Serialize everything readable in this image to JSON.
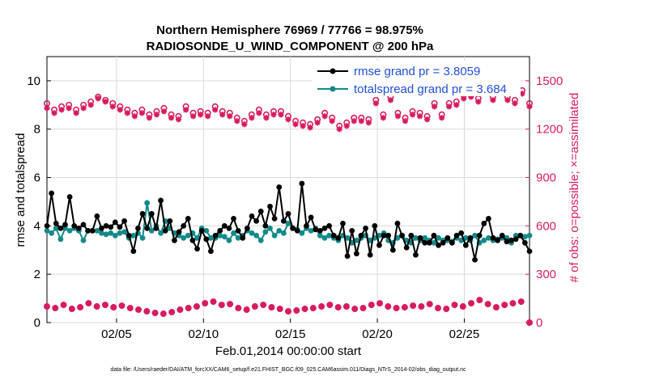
{
  "chart_data": {
    "type": "line",
    "title_line1": "Northern Hemisphere 76969 / 77766 = 98.975%",
    "title_line2": "RADIOSONDE_U_WIND_COMPONENT @ 200 hPa",
    "xlabel": "Feb.01,2014 00:00:00 start",
    "ylabel_left": "rmse and totalspread",
    "ylabel_right": "# of obs: o=possible; ×=assimilated",
    "footer": "data file: /Users/raeder/DAI/ATM_forcXX/CAM6_setup/f.e21.FHIST_BGC.f09_025.CAM6assim.011/Diags_NTrS_2014-02/obs_diag_output.nc",
    "x_tick_labels": [
      "02/05",
      "02/10",
      "02/15",
      "02/20",
      "02/25"
    ],
    "x_tick_values": [
      5,
      10,
      15,
      20,
      25
    ],
    "xlim": [
      1,
      28.75
    ],
    "left_ylim": [
      0,
      11
    ],
    "left_yticks": [
      "0",
      "2",
      "4",
      "6",
      "8",
      "10"
    ],
    "right_ylim": [
      0,
      1650
    ],
    "right_yticks": [
      "0",
      "300",
      "600",
      "900",
      "1200",
      "1500"
    ],
    "colors": {
      "rmse": "#000000",
      "spread": "#138a8a",
      "obs": "#d81b60",
      "legend_text": "#1f4fd6"
    },
    "legend": [
      {
        "label": "rmse grand pr = 3.8059",
        "series": "rmse"
      },
      {
        "label": "totalspread grand pr = 3.684",
        "series": "spread"
      }
    ],
    "series": [
      {
        "name": "rmse",
        "axis": "left",
        "values": [
          4.0,
          5.35,
          4.1,
          3.9,
          4.05,
          5.2,
          4.0,
          3.9,
          4.05,
          3.8,
          3.8,
          4.4,
          3.9,
          4.0,
          3.95,
          4.15,
          3.95,
          4.2,
          3.6,
          2.95,
          3.9,
          4.5,
          3.9,
          4.5,
          3.9,
          5.05,
          3.8,
          4.2,
          3.4,
          3.75,
          4.0,
          4.3,
          3.4,
          3.05,
          3.8,
          3.45,
          2.95,
          3.6,
          3.8,
          4.0,
          3.9,
          4.3,
          3.8,
          3.5,
          3.9,
          4.4,
          4.2,
          4.6,
          4.0,
          4.8,
          4.3,
          5.6,
          4.2,
          4.5,
          3.9,
          3.8,
          5.75,
          4.0,
          4.35,
          3.85,
          3.8,
          3.9,
          4.0,
          3.6,
          3.5,
          4.1,
          2.75,
          3.8,
          2.85,
          3.6,
          3.9,
          2.8,
          4.0,
          3.2,
          3.6,
          3.6,
          3.0,
          4.1,
          3.6,
          3.1,
          3.6,
          2.8,
          3.5,
          3.3,
          3.3,
          3.6,
          3.2,
          3.3,
          3.5,
          3.3,
          3.6,
          3.7,
          3.2,
          3.5,
          2.6,
          3.6,
          4.1,
          4.3,
          3.5,
          3.4,
          3.6,
          3.35,
          3.4,
          3.45,
          3.6,
          3.3,
          2.95
        ]
      },
      {
        "name": "totalspread",
        "axis": "left",
        "values": [
          3.8,
          3.7,
          3.9,
          3.45,
          3.9,
          3.8,
          3.9,
          3.8,
          3.4,
          3.8,
          3.8,
          3.8,
          3.7,
          3.65,
          3.7,
          3.6,
          3.7,
          3.75,
          3.5,
          3.6,
          3.7,
          3.5,
          4.95,
          3.8,
          4.0,
          3.7,
          4.2,
          3.9,
          3.7,
          3.6,
          3.5,
          3.6,
          3.7,
          3.5,
          3.9,
          3.8,
          3.5,
          3.5,
          3.6,
          3.55,
          3.4,
          3.7,
          3.5,
          3.6,
          3.8,
          3.7,
          3.6,
          3.4,
          3.75,
          3.9,
          3.6,
          3.8,
          3.7,
          4.1,
          3.9,
          3.85,
          3.7,
          3.9,
          3.8,
          3.9,
          3.6,
          3.5,
          3.6,
          3.5,
          3.4,
          3.6,
          3.5,
          3.3,
          3.4,
          3.5,
          3.6,
          3.4,
          3.5,
          3.6,
          3.7,
          3.4,
          3.3,
          3.5,
          3.6,
          3.4,
          3.3,
          3.5,
          3.4,
          3.5,
          3.4,
          3.3,
          3.5,
          3.4,
          3.4,
          3.35,
          3.5,
          3.4,
          3.5,
          3.4,
          3.6,
          3.3,
          3.4,
          3.5,
          3.4,
          3.45,
          3.5,
          3.5,
          3.3,
          3.6,
          3.6,
          3.55,
          3.6
        ]
      },
      {
        "name": "obs_possible",
        "axis": "right",
        "values": [
          1360,
          1320,
          1340,
          1350,
          1320,
          1350,
          1370,
          1400,
          1380,
          1360,
          1340,
          1320,
          1300,
          1320,
          1290,
          1310,
          1330,
          1290,
          1280,
          1340,
          1300,
          1310,
          1300,
          1340,
          1310,
          1300,
          1270,
          1250,
          1290,
          1320,
          1290,
          1310,
          1310,
          1280,
          1250,
          1240,
          1230,
          1260,
          1300,
          1270,
          1220,
          1240,
          1270,
          1270,
          1260,
          1380,
          1290,
          1400,
          1300,
          1270,
          1310,
          1300,
          1280,
          1360,
          1290,
          1360,
          1370,
          1410,
          1420,
          1390,
          1450,
          1400,
          1470,
          1400,
          1380,
          1440,
          1360
        ],
        "assimilated": [
          1330,
          1300,
          1320,
          1330,
          1300,
          1330,
          1350,
          1390,
          1370,
          1340,
          1320,
          1300,
          1280,
          1300,
          1270,
          1290,
          1310,
          1270,
          1260,
          1320,
          1280,
          1290,
          1280,
          1320,
          1290,
          1280,
          1250,
          1230,
          1270,
          1300,
          1270,
          1290,
          1290,
          1260,
          1230,
          1220,
          1210,
          1240,
          1280,
          1250,
          1200,
          1220,
          1250,
          1250,
          1240,
          1360,
          1270,
          1380,
          1280,
          1250,
          1290,
          1280,
          1260,
          1340,
          1270,
          1340,
          1350,
          1390,
          1400,
          1370,
          1430,
          1380,
          1450,
          1380,
          1360,
          1420,
          1340
        ]
      },
      {
        "name": "obs_low",
        "axis": "right",
        "values": [
          100,
          90,
          110,
          85,
          95,
          120,
          100,
          110,
          95,
          105,
          90,
          80,
          70,
          60,
          55,
          65,
          80,
          90,
          100,
          120,
          130,
          110,
          115,
          90,
          80,
          100,
          110,
          95,
          85,
          70,
          75,
          85,
          90,
          100,
          110,
          95,
          100,
          85,
          90,
          110,
          120,
          100,
          90,
          95,
          105,
          100,
          115,
          90,
          85,
          110,
          100,
          120,
          140,
          115,
          95,
          110,
          120,
          130,
          0
        ]
      }
    ]
  }
}
